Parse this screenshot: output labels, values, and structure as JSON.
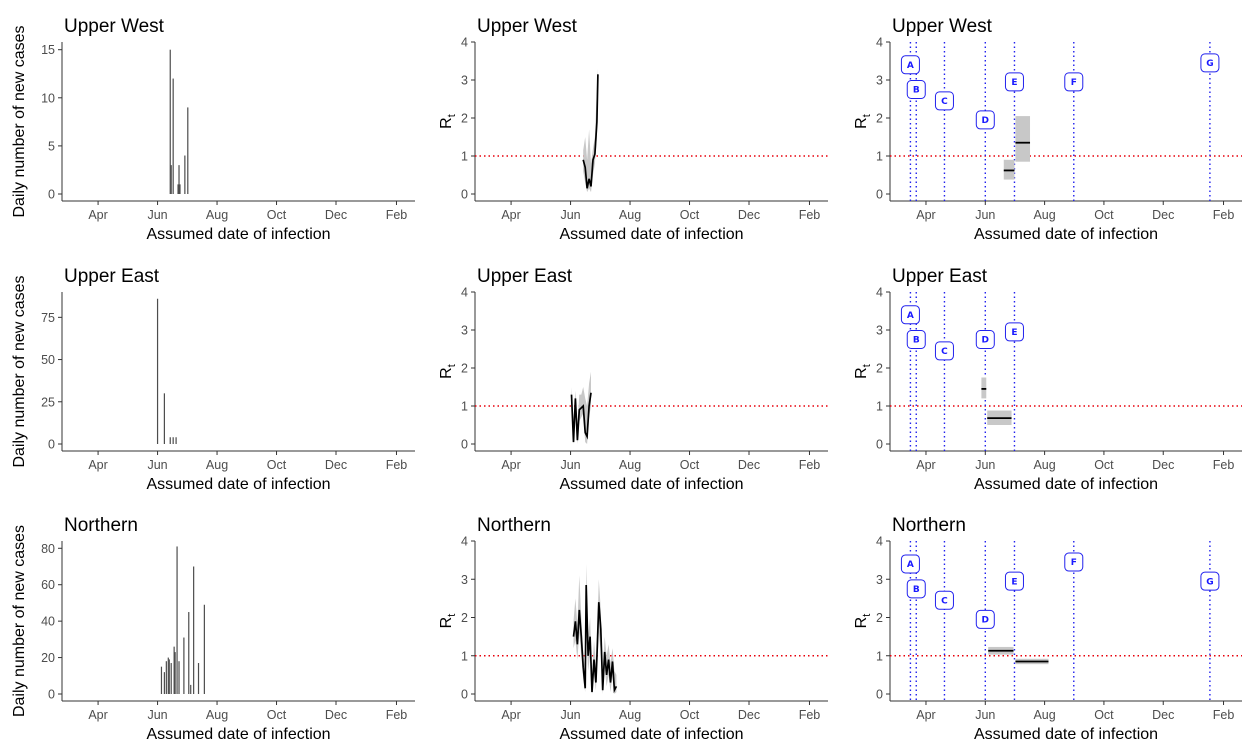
{
  "chart_data": [
    {
      "type": "bar",
      "title": "Upper West",
      "xlabel": "Assumed date of infection",
      "ylabel": "Daily number of new cases",
      "ylim": [
        0,
        15.8
      ],
      "yticks": [
        "0",
        "5",
        "10",
        "15"
      ],
      "xticks": [
        "Apr",
        "Jun",
        "Aug",
        "Oct",
        "Dec",
        "Feb"
      ],
      "bars": [
        {
          "x": "2020-06-14",
          "y": 15
        },
        {
          "x": "2020-06-15",
          "y": 3
        },
        {
          "x": "2020-06-17",
          "y": 12
        },
        {
          "x": "2020-06-22",
          "y": 1
        },
        {
          "x": "2020-06-23",
          "y": 3
        },
        {
          "x": "2020-06-24",
          "y": 1
        },
        {
          "x": "2020-06-29",
          "y": 4
        },
        {
          "x": "2020-07-02",
          "y": 9
        }
      ]
    },
    {
      "type": "line",
      "title": "Upper West",
      "xlabel": "Assumed date of infection",
      "ylabel": "Rt",
      "ylim": [
        0,
        4
      ],
      "yticks": [
        "0",
        "1",
        "2",
        "3",
        "4"
      ],
      "xticks": [
        "Apr",
        "Jun",
        "Aug",
        "Oct",
        "Dec",
        "Feb"
      ],
      "reference_y": 1,
      "series": [
        {
          "x": [
            "2020-06-14",
            "2020-06-16",
            "2020-06-18",
            "2020-06-20",
            "2020-06-22",
            "2020-06-24",
            "2020-06-26",
            "2020-06-28",
            "2020-06-29"
          ],
          "y": [
            0.9,
            0.7,
            0.15,
            0.4,
            0.2,
            0.9,
            1.05,
            1.9,
            3.15
          ],
          "lo": [
            0.6,
            0.3,
            0.05,
            0.15,
            0.05,
            0.5,
            0.8,
            1.5,
            2.6
          ],
          "hi": [
            1.15,
            1.5,
            0.9,
            1.7,
            0.8,
            1.2,
            1.5,
            2.8,
            3.3
          ]
        }
      ]
    },
    {
      "type": "line",
      "title": "Upper West",
      "xlabel": "Assumed date of infection",
      "ylabel": "Rt",
      "ylim": [
        0,
        4
      ],
      "yticks": [
        "0",
        "1",
        "2",
        "3",
        "4"
      ],
      "xticks": [
        "Apr",
        "Jun",
        "Aug",
        "Oct",
        "Dec",
        "Feb"
      ],
      "reference_y": 1,
      "events": [
        {
          "label": "A",
          "x": "2020-03-16",
          "y": 3.4
        },
        {
          "label": "B",
          "x": "2020-03-22",
          "y": 2.75
        },
        {
          "label": "C",
          "x": "2020-04-20",
          "y": 2.45
        },
        {
          "label": "D",
          "x": "2020-06-01",
          "y": 1.95
        },
        {
          "label": "E",
          "x": "2020-07-01",
          "y": 2.95
        },
        {
          "label": "F",
          "x": "2020-08-31",
          "y": 2.95
        },
        {
          "label": "G",
          "x": "2021-01-18",
          "y": 3.45
        }
      ],
      "estimates": [
        {
          "x": [
            "2020-06-20",
            "2020-07-01"
          ],
          "y": 0.62,
          "lo": 0.38,
          "hi": 0.9
        },
        {
          "x": [
            "2020-07-02",
            "2020-07-17"
          ],
          "y": 1.35,
          "lo": 0.85,
          "hi": 2.05
        }
      ]
    },
    {
      "type": "bar",
      "title": "Upper East",
      "xlabel": "Assumed date of infection",
      "ylabel": "Daily number of new cases",
      "ylim": [
        0,
        90
      ],
      "yticks": [
        "0",
        "25",
        "50",
        "75"
      ],
      "xticks": [
        "Apr",
        "Jun",
        "Aug",
        "Oct",
        "Dec",
        "Feb"
      ],
      "bars": [
        {
          "x": "2020-06-01",
          "y": 86
        },
        {
          "x": "2020-06-08",
          "y": 30
        },
        {
          "x": "2020-06-14",
          "y": 4
        },
        {
          "x": "2020-06-17",
          "y": 4
        },
        {
          "x": "2020-06-20",
          "y": 4
        }
      ]
    },
    {
      "type": "line",
      "title": "Upper East",
      "xlabel": "Assumed date of infection",
      "ylabel": "Rt",
      "ylim": [
        0,
        4
      ],
      "yticks": [
        "0",
        "1",
        "2",
        "3",
        "4"
      ],
      "xticks": [
        "Apr",
        "Jun",
        "Aug",
        "Oct",
        "Dec",
        "Feb"
      ],
      "reference_y": 1,
      "series": [
        {
          "x": [
            "2020-06-02",
            "2020-06-04",
            "2020-06-06",
            "2020-06-08",
            "2020-06-10",
            "2020-06-12",
            "2020-06-14",
            "2020-06-16",
            "2020-06-18",
            "2020-06-20",
            "2020-06-22"
          ],
          "y": [
            1.3,
            0.05,
            1.2,
            0.1,
            0.9,
            0.95,
            1.0,
            0.3,
            0.2,
            1.0,
            1.35
          ],
          "lo": [
            1.0,
            0.0,
            0.9,
            0.0,
            0.6,
            0.7,
            0.8,
            0.05,
            0.0,
            0.7,
            1.0
          ],
          "hi": [
            1.5,
            0.6,
            1.4,
            0.5,
            1.3,
            1.3,
            1.5,
            1.2,
            1.0,
            1.6,
            1.9
          ]
        }
      ]
    },
    {
      "type": "line",
      "title": "Upper East",
      "xlabel": "Assumed date of infection",
      "ylabel": "Rt",
      "ylim": [
        0,
        4
      ],
      "yticks": [
        "0",
        "1",
        "2",
        "3",
        "4"
      ],
      "xticks": [
        "Apr",
        "Jun",
        "Aug",
        "Oct",
        "Dec",
        "Feb"
      ],
      "reference_y": 1,
      "events": [
        {
          "label": "A",
          "x": "2020-03-16",
          "y": 3.4
        },
        {
          "label": "B",
          "x": "2020-03-22",
          "y": 2.75
        },
        {
          "label": "C",
          "x": "2020-04-20",
          "y": 2.45
        },
        {
          "label": "D",
          "x": "2020-06-01",
          "y": 2.75
        },
        {
          "label": "E",
          "x": "2020-07-01",
          "y": 2.95
        }
      ],
      "estimates": [
        {
          "x": [
            "2020-05-28",
            "2020-06-02"
          ],
          "y": 1.45,
          "lo": 1.2,
          "hi": 1.75
        },
        {
          "x": [
            "2020-06-03",
            "2020-06-28"
          ],
          "y": 0.68,
          "lo": 0.5,
          "hi": 0.88
        }
      ]
    },
    {
      "type": "bar",
      "title": "Northern",
      "xlabel": "Assumed date of infection",
      "ylabel": "Daily number of new cases",
      "ylim": [
        0,
        84
      ],
      "yticks": [
        "0",
        "20",
        "40",
        "60",
        "80"
      ],
      "xticks": [
        "Apr",
        "Jun",
        "Aug",
        "Oct",
        "Dec",
        "Feb"
      ],
      "bars": [
        {
          "x": "2020-06-05",
          "y": 15
        },
        {
          "x": "2020-06-08",
          "y": 12
        },
        {
          "x": "2020-06-10",
          "y": 18
        },
        {
          "x": "2020-06-12",
          "y": 20
        },
        {
          "x": "2020-06-13",
          "y": 19
        },
        {
          "x": "2020-06-15",
          "y": 17
        },
        {
          "x": "2020-06-18",
          "y": 26
        },
        {
          "x": "2020-06-19",
          "y": 23
        },
        {
          "x": "2020-06-21",
          "y": 81
        },
        {
          "x": "2020-06-23",
          "y": 18
        },
        {
          "x": "2020-06-28",
          "y": 31
        },
        {
          "x": "2020-07-03",
          "y": 45
        },
        {
          "x": "2020-07-05",
          "y": 5
        },
        {
          "x": "2020-07-08",
          "y": 70
        },
        {
          "x": "2020-07-13",
          "y": 17
        },
        {
          "x": "2020-07-19",
          "y": 49
        }
      ]
    },
    {
      "type": "line",
      "title": "Northern",
      "xlabel": "Assumed date of infection",
      "ylabel": "Rt",
      "ylim": [
        0,
        4
      ],
      "yticks": [
        "0",
        "1",
        "2",
        "3",
        "4"
      ],
      "xticks": [
        "Apr",
        "Jun",
        "Aug",
        "Oct",
        "Dec",
        "Feb"
      ],
      "reference_y": 1,
      "series": [
        {
          "x": [
            "2020-06-04",
            "2020-06-06",
            "2020-06-08",
            "2020-06-10",
            "2020-06-12",
            "2020-06-14",
            "2020-06-16",
            "2020-06-17",
            "2020-06-19",
            "2020-06-21",
            "2020-06-23",
            "2020-06-25",
            "2020-06-27",
            "2020-06-28",
            "2020-06-30",
            "2020-07-02",
            "2020-07-04",
            "2020-07-06",
            "2020-07-08",
            "2020-07-10",
            "2020-07-12",
            "2020-07-14",
            "2020-07-16",
            "2020-07-18"
          ],
          "y": [
            1.5,
            1.9,
            1.3,
            2.2,
            1.5,
            0.7,
            0.15,
            2.85,
            1.0,
            1.5,
            0.05,
            0.9,
            0.3,
            0.95,
            2.4,
            1.7,
            0.1,
            1.1,
            0.5,
            0.9,
            0.3,
            0.85,
            0.1,
            0.2
          ],
          "lo": [
            1.2,
            1.4,
            0.9,
            1.6,
            1.0,
            0.4,
            0.05,
            1.7,
            0.6,
            1.0,
            0.0,
            0.5,
            0.1,
            0.6,
            1.6,
            1.1,
            0.0,
            0.7,
            0.2,
            0.5,
            0.05,
            0.5,
            0.0,
            0.05
          ],
          "hi": [
            1.9,
            2.5,
            1.8,
            3.1,
            2.0,
            1.1,
            0.6,
            3.4,
            1.5,
            2.0,
            0.5,
            1.4,
            0.8,
            1.4,
            3.0,
            2.2,
            0.6,
            1.5,
            1.0,
            1.3,
            0.8,
            1.2,
            0.6,
            0.5
          ]
        }
      ]
    },
    {
      "type": "line",
      "title": "Northern",
      "xlabel": "Assumed date of infection",
      "ylabel": "Rt",
      "ylim": [
        0,
        4
      ],
      "yticks": [
        "0",
        "1",
        "2",
        "3",
        "4"
      ],
      "xticks": [
        "Apr",
        "Jun",
        "Aug",
        "Oct",
        "Dec",
        "Feb"
      ],
      "reference_y": 1,
      "events": [
        {
          "label": "A",
          "x": "2020-03-16",
          "y": 3.4
        },
        {
          "label": "B",
          "x": "2020-03-22",
          "y": 2.75
        },
        {
          "label": "C",
          "x": "2020-04-20",
          "y": 2.45
        },
        {
          "label": "D",
          "x": "2020-06-01",
          "y": 1.95
        },
        {
          "label": "E",
          "x": "2020-07-01",
          "y": 2.95
        },
        {
          "label": "F",
          "x": "2020-08-31",
          "y": 3.45
        },
        {
          "label": "G",
          "x": "2021-01-18",
          "y": 2.95
        }
      ],
      "estimates": [
        {
          "x": [
            "2020-06-04",
            "2020-06-30"
          ],
          "y": 1.13,
          "lo": 1.03,
          "hi": 1.23
        },
        {
          "x": [
            "2020-07-02",
            "2020-08-05"
          ],
          "y": 0.85,
          "lo": 0.78,
          "hi": 0.92
        }
      ]
    }
  ],
  "colors": {
    "reference_line": "#e8000b",
    "event_line": "#2222ee",
    "event_label": "#1a1aff",
    "ribbon": "#c8c8c8",
    "line": "#000000",
    "bar": "#4d4d4d",
    "axis": "#333333",
    "tick_text": "#4d4d4d"
  }
}
